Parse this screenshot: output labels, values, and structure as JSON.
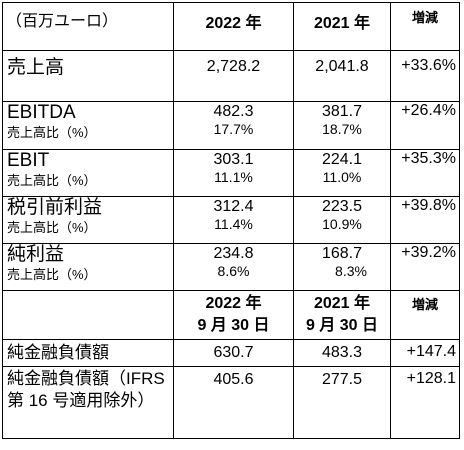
{
  "header": {
    "unit": "（百万ユーロ）",
    "col_2022": "2022 年",
    "col_2021": "2021 年",
    "change": "増減"
  },
  "rows": [
    {
      "label": "売上高",
      "sub": "",
      "v2022": "2,728.2",
      "p2022": "",
      "v2021": "2,041.8",
      "p2021": "",
      "change": "+33.6%"
    },
    {
      "label": "EBITDA",
      "sub": "売上高比（%）",
      "v2022": "482.3",
      "p2022": "17.7%",
      "v2021": "381.7",
      "p2021": "18.7%",
      "change": "+26.4%"
    },
    {
      "label": "EBIT",
      "sub": "売上高比（%）",
      "v2022": "303.1",
      "p2022": "11.1%",
      "v2021": "224.1",
      "p2021": "11.0%",
      "change": "+35.3%"
    },
    {
      "label": "税引前利益",
      "sub": "売上高比（%）",
      "v2022": "312.4",
      "p2022": "11.4%",
      "v2021": "223.5",
      "p2021": "10.9%",
      "change": "+39.8%"
    },
    {
      "label": "純利益",
      "sub": "売上高比（%）",
      "v2022": "234.8",
      "p2022": "8.6%",
      "v2021": "168.7",
      "p2021": "8.3%",
      "change": "+39.2%"
    }
  ],
  "header2": {
    "col_2022_year": "2022 年",
    "col_2022_date": "9 月 30 日",
    "col_2021_year": "2021 年",
    "col_2021_date": "9 月 30 日",
    "change": "増減"
  },
  "debt_rows": [
    {
      "label": "純金融負債額",
      "v2022": "630.7",
      "v2021": "483.3",
      "change": "+147.4"
    },
    {
      "label": "純金融負債額（IFRS 第 16 号適用除外）",
      "v2022": "405.6",
      "v2021": "277.5",
      "change": "+128.1"
    }
  ]
}
